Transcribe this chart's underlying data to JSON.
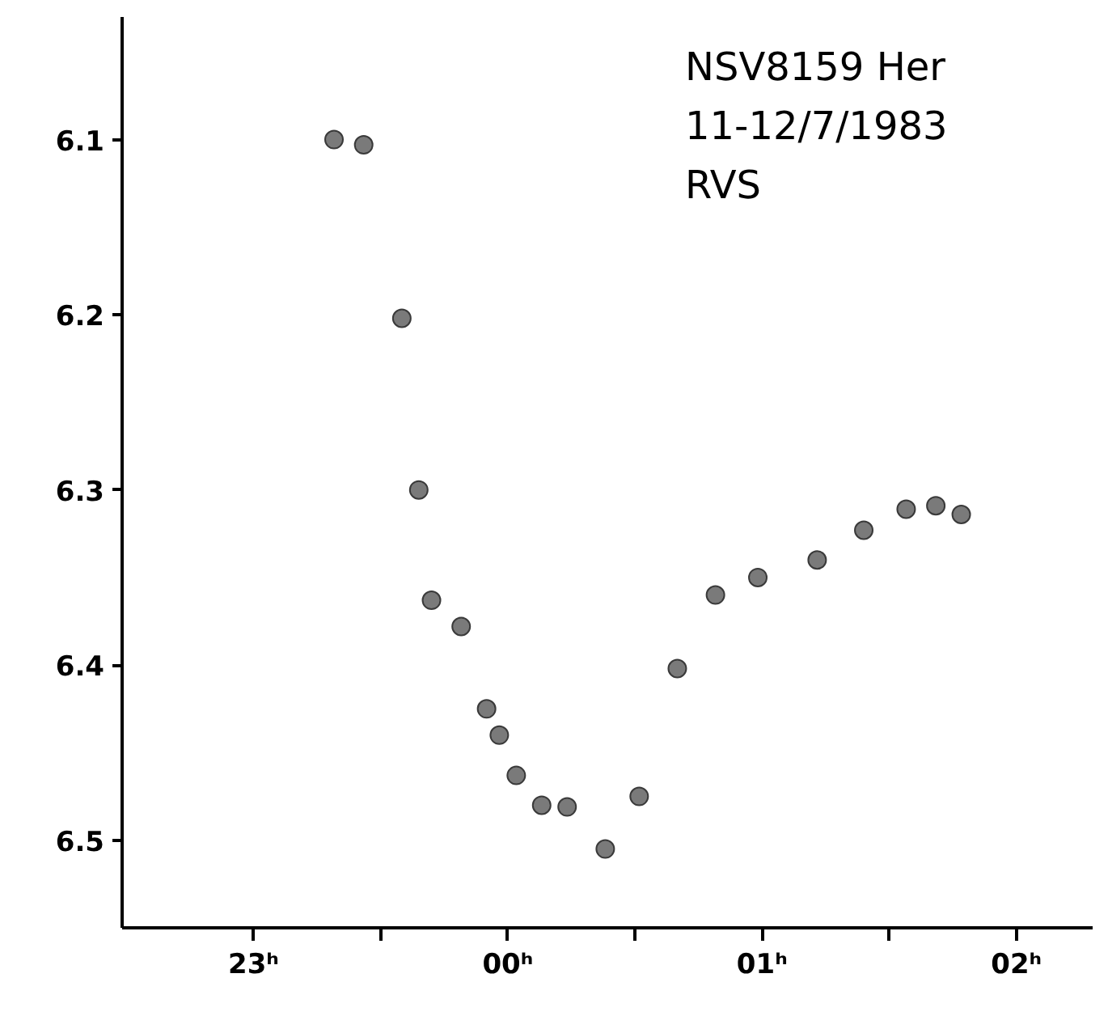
{
  "chart_data": {
    "type": "scatter",
    "x": [
      "1983-07-11T23:19",
      "1983-07-11T23:26",
      "1983-07-11T23:35",
      "1983-07-11T23:39",
      "1983-07-11T23:42",
      "1983-07-11T23:49",
      "1983-07-11T23:55",
      "1983-07-11T23:58",
      "1983-07-12T00:02",
      "1983-07-12T00:08",
      "1983-07-12T00:14",
      "1983-07-12T00:23",
      "1983-07-12T00:31",
      "1983-07-12T00:40",
      "1983-07-12T00:49",
      "1983-07-12T00:59",
      "1983-07-12T01:13",
      "1983-07-12T01:24",
      "1983-07-12T01:34",
      "1983-07-12T01:41",
      "1983-07-12T01:47"
    ],
    "series": [
      {
        "color": "#7a7a7a",
        "values": [
          6.1,
          6.103,
          6.202,
          6.3,
          6.363,
          6.378,
          6.425,
          6.44,
          6.463,
          6.48,
          6.481,
          6.505,
          6.475,
          6.402,
          6.36,
          6.35,
          6.34,
          6.323,
          6.311,
          6.309,
          6.314
        ]
      }
    ],
    "xlim": [
      "1983-07-11T22:29",
      "1983-07-12T02:18"
    ],
    "ylim": [
      6.55,
      6.03
    ],
    "xticks": [
      {
        "value": "1983-07-11T23:00",
        "label": "23ʰ"
      },
      {
        "value": "1983-07-11T23:30",
        "label": null
      },
      {
        "value": "1983-07-12T00:00",
        "label": "00ʰ"
      },
      {
        "value": "1983-07-12T00:30",
        "label": null
      },
      {
        "value": "1983-07-12T01:00",
        "label": "01ʰ"
      },
      {
        "value": "1983-07-12T01:30",
        "label": null
      },
      {
        "value": "1983-07-12T02:00",
        "label": "02ʰ"
      }
    ],
    "yticks": [
      6.1,
      6.2,
      6.3,
      6.4,
      6.5
    ],
    "annotations": [
      "NSV8159 Her",
      "11-12/7/1983",
      "RVS"
    ],
    "marker": "circle"
  }
}
